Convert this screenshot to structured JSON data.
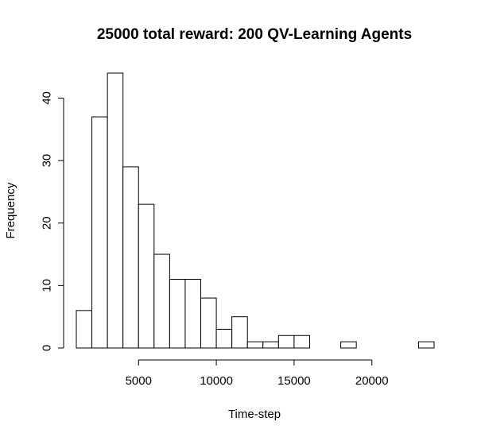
{
  "chart_data": {
    "type": "bar",
    "title": "25000 total reward: 200 QV-Learning Agents",
    "xlabel": "Time-step",
    "ylabel": "Frequency",
    "bin_width": 1000,
    "bins": [
      {
        "start": 1000,
        "end": 2000,
        "count": 6
      },
      {
        "start": 2000,
        "end": 3000,
        "count": 37
      },
      {
        "start": 3000,
        "end": 4000,
        "count": 44
      },
      {
        "start": 4000,
        "end": 5000,
        "count": 29
      },
      {
        "start": 5000,
        "end": 6000,
        "count": 23
      },
      {
        "start": 6000,
        "end": 7000,
        "count": 15
      },
      {
        "start": 7000,
        "end": 8000,
        "count": 11
      },
      {
        "start": 8000,
        "end": 9000,
        "count": 11
      },
      {
        "start": 9000,
        "end": 10000,
        "count": 8
      },
      {
        "start": 10000,
        "end": 11000,
        "count": 3
      },
      {
        "start": 11000,
        "end": 12000,
        "count": 5
      },
      {
        "start": 12000,
        "end": 13000,
        "count": 1
      },
      {
        "start": 13000,
        "end": 14000,
        "count": 1
      },
      {
        "start": 14000,
        "end": 15000,
        "count": 2
      },
      {
        "start": 15000,
        "end": 16000,
        "count": 2
      },
      {
        "start": 16000,
        "end": 17000,
        "count": 0
      },
      {
        "start": 17000,
        "end": 18000,
        "count": 0
      },
      {
        "start": 18000,
        "end": 19000,
        "count": 1
      },
      {
        "start": 19000,
        "end": 20000,
        "count": 0
      },
      {
        "start": 20000,
        "end": 21000,
        "count": 0
      },
      {
        "start": 21000,
        "end": 22000,
        "count": 0
      },
      {
        "start": 22000,
        "end": 23000,
        "count": 0
      },
      {
        "start": 23000,
        "end": 24000,
        "count": 1
      }
    ],
    "x_ticks": [
      5000,
      10000,
      15000,
      20000
    ],
    "x_tick_labels": [
      "5000",
      "10000",
      "15000",
      "20000"
    ],
    "y_ticks": [
      0,
      10,
      20,
      30,
      40
    ],
    "y_tick_labels": [
      "0",
      "10",
      "20",
      "30",
      "40"
    ],
    "xlim": [
      1000,
      24000
    ],
    "ylim": [
      0,
      44
    ],
    "grid": false,
    "legend": "none",
    "colors": {
      "bar_fill": "#ffffff",
      "bar_stroke": "#000000"
    }
  }
}
